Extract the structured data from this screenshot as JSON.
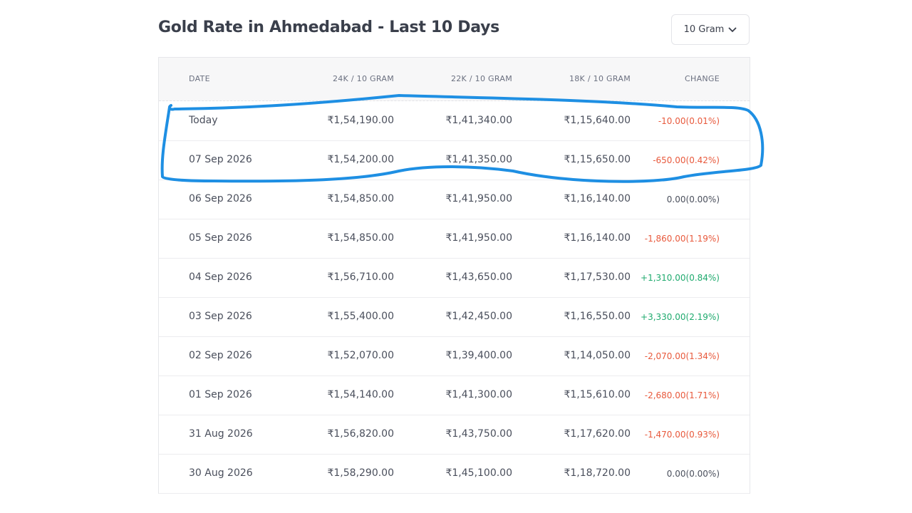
{
  "header": {
    "title": "Gold Rate in Ahmedabad - Last 10 Days",
    "unit_selector": "10 Gram"
  },
  "table": {
    "columns": [
      "DATE",
      "24K / 10 GRAM",
      "22K / 10 GRAM",
      "18K / 10 GRAM",
      "CHANGE"
    ],
    "rows": [
      [
        "Today",
        "₹1,54,190.00",
        "₹1,41,340.00",
        "₹1,15,640.00",
        "-10.00(0.01%)"
      ],
      [
        "07 Sep 2026",
        "₹1,54,200.00",
        "₹1,41,350.00",
        "₹1,15,650.00",
        "-650.00(0.42%)"
      ],
      [
        "06 Sep 2026",
        "₹1,54,850.00",
        "₹1,41,950.00",
        "₹1,16,140.00",
        "0.00(0.00%)"
      ],
      [
        "05 Sep 2026",
        "₹1,54,850.00",
        "₹1,41,950.00",
        "₹1,16,140.00",
        "-1,860.00(1.19%)"
      ],
      [
        "04 Sep 2026",
        "₹1,56,710.00",
        "₹1,43,650.00",
        "₹1,17,530.00",
        "+1,310.00(0.84%)"
      ],
      [
        "03 Sep 2026",
        "₹1,55,400.00",
        "₹1,42,450.00",
        "₹1,16,550.00",
        "+3,330.00(2.19%)"
      ],
      [
        "02 Sep 2026",
        "₹1,52,070.00",
        "₹1,39,400.00",
        "₹1,14,050.00",
        "-2,070.00(1.34%)"
      ],
      [
        "01 Sep 2026",
        "₹1,54,140.00",
        "₹1,41,300.00",
        "₹1,15,610.00",
        "-2,680.00(1.71%)"
      ],
      [
        "31 Aug 2026",
        "₹1,56,820.00",
        "₹1,43,750.00",
        "₹1,17,620.00",
        "-1,470.00(0.93%)"
      ],
      [
        "30 Aug 2026",
        "₹1,58,290.00",
        "₹1,45,100.00",
        "₹1,18,720.00",
        "0.00(0.00%)"
      ]
    ]
  }
}
